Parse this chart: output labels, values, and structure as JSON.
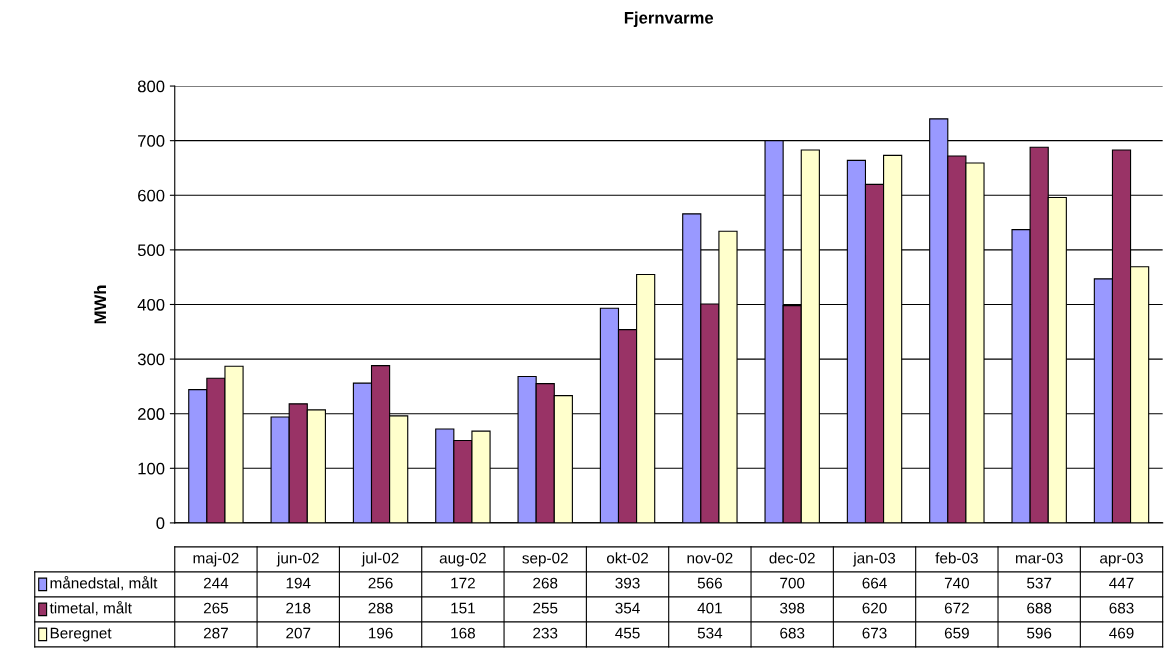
{
  "chart_data": {
    "type": "bar",
    "title": "Fjernvarme",
    "ylabel": "MWh",
    "categories": [
      "maj-02",
      "jun-02",
      "jul-02",
      "aug-02",
      "sep-02",
      "okt-02",
      "nov-02",
      "dec-02",
      "jan-03",
      "feb-03",
      "mar-03",
      "apr-03"
    ],
    "series": [
      {
        "name": "månedstal, målt",
        "color": "#9999ff",
        "values": [
          244,
          194,
          256,
          172,
          268,
          393,
          566,
          700,
          664,
          740,
          537,
          447
        ]
      },
      {
        "name": "timetal, målt",
        "color": "#993366",
        "values": [
          265,
          218,
          288,
          151,
          255,
          354,
          401,
          398,
          620,
          672,
          688,
          683
        ]
      },
      {
        "name": "Beregnet",
        "color": "#ffffcc",
        "values": [
          287,
          207,
          196,
          168,
          233,
          455,
          534,
          683,
          673,
          659,
          596,
          469
        ]
      }
    ],
    "ylim": [
      0,
      800
    ],
    "yticks": [
      0,
      100,
      200,
      300,
      400,
      500,
      600,
      700,
      800
    ],
    "grid": "y",
    "legend": "bottom",
    "data_labels": true
  }
}
